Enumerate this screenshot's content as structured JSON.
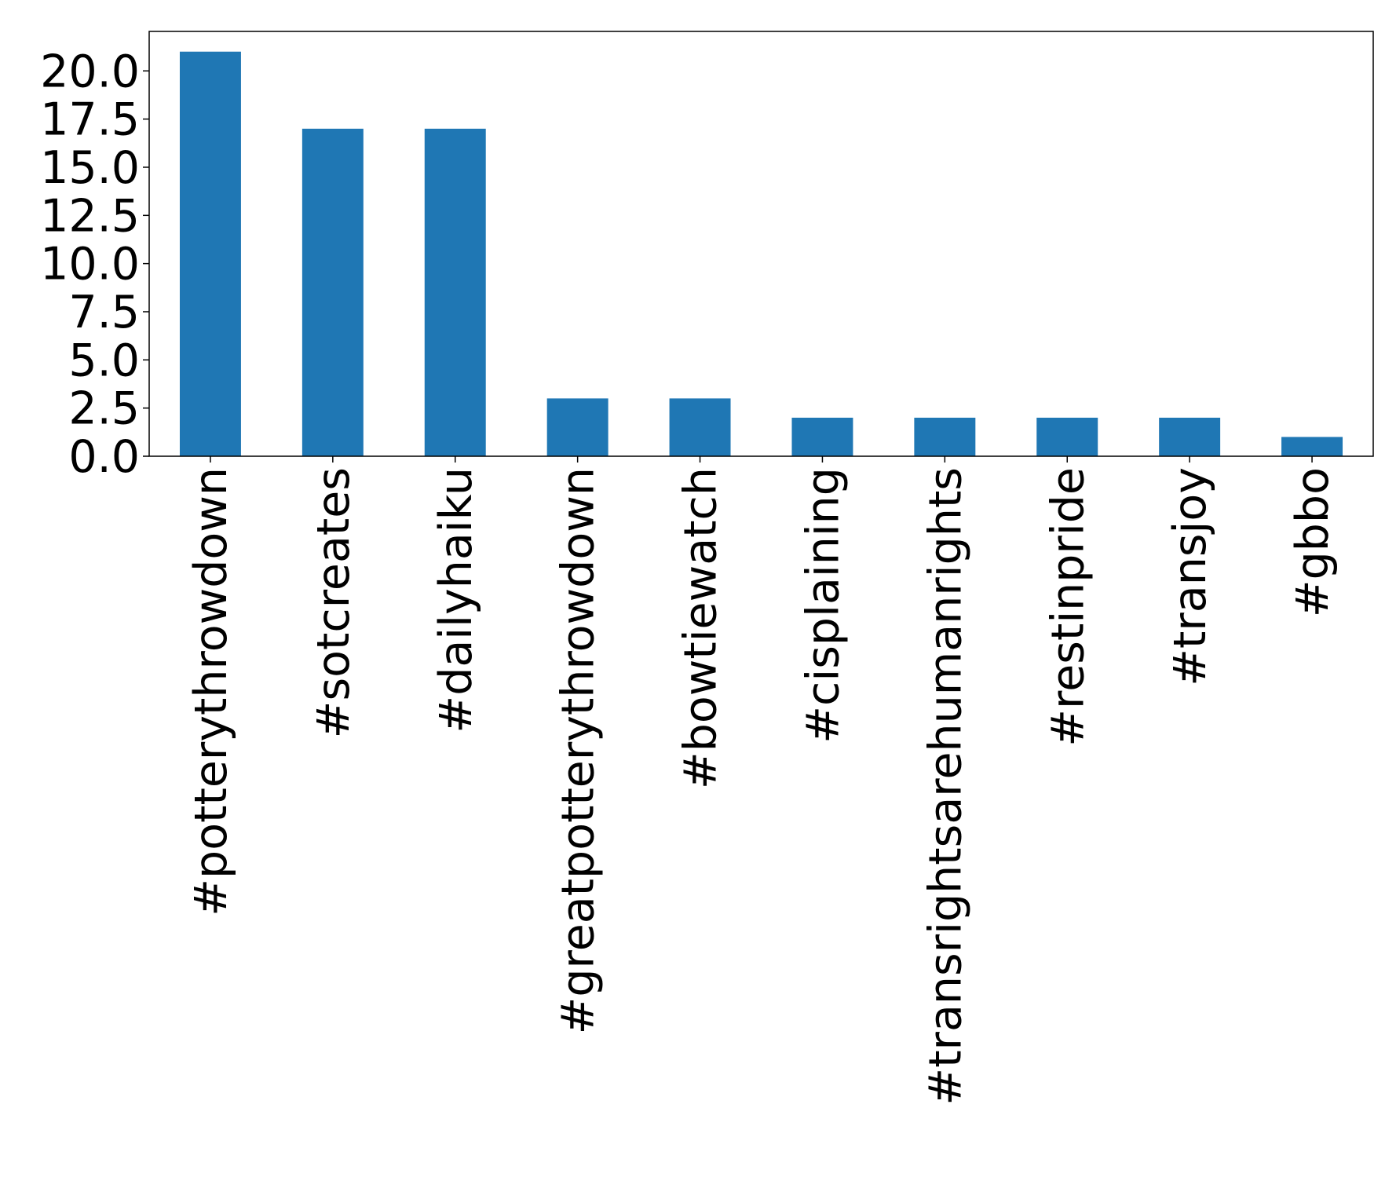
{
  "chart_data": {
    "type": "bar",
    "categories": [
      "#potterythrowdown",
      "#sotcreates",
      "#dailyhaiku",
      "#greatpotterythrowdown",
      "#bowtiewatch",
      "#cisplaining",
      "#transrightsarehumanrights",
      "#restinpride",
      "#transjoy",
      "#gbbo"
    ],
    "values": [
      21,
      17,
      17,
      3,
      3,
      2,
      2,
      2,
      2,
      1
    ],
    "color": "#1f77b4",
    "ylim": [
      0,
      22.05
    ],
    "yticks": [
      {
        "value": 0,
        "label": "0.0"
      },
      2.5,
      {
        "value": 5,
        "label": "5.0"
      },
      7.5,
      {
        "value": 10,
        "label": "10.0"
      },
      12.5,
      {
        "value": 15,
        "label": "15.0"
      },
      17.5,
      {
        "value": 20,
        "label": "20.0"
      }
    ],
    "grid": false
  }
}
